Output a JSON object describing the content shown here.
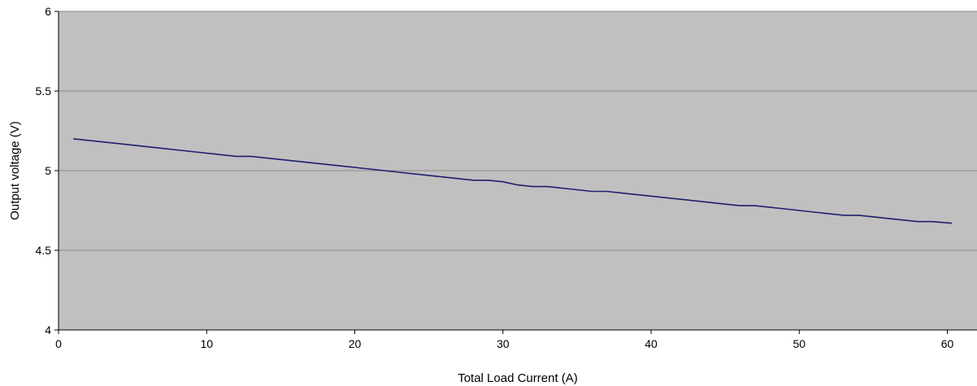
{
  "chart_data": {
    "type": "line",
    "title": "",
    "xlabel": "Total Load Current (A)",
    "ylabel": "Output voltage (V)",
    "xlim": [
      0,
      62
    ],
    "ylim": [
      4,
      6
    ],
    "x_ticks": [
      "0",
      "10",
      "20",
      "30",
      "40",
      "50",
      "60"
    ],
    "y_ticks": [
      "4",
      "4.5",
      "5",
      "5.5",
      "6"
    ],
    "grid": "horizontal",
    "legend": "none",
    "plot_background": "#c0c0c0",
    "series": [
      {
        "color": "#1f1f6e",
        "x": [
          1,
          3,
          5,
          7,
          9,
          11,
          12,
          13,
          15,
          17,
          19,
          21,
          23,
          25,
          27,
          28,
          29,
          30,
          31,
          32,
          33,
          35,
          36,
          37,
          39,
          41,
          43,
          45,
          46,
          47,
          49,
          51,
          53,
          54,
          56,
          58,
          59,
          60.3
        ],
        "y": [
          5.2,
          5.18,
          5.16,
          5.14,
          5.12,
          5.1,
          5.09,
          5.09,
          5.07,
          5.05,
          5.03,
          5.01,
          4.99,
          4.97,
          4.95,
          4.94,
          4.94,
          4.93,
          4.91,
          4.9,
          4.9,
          4.88,
          4.87,
          4.87,
          4.85,
          4.83,
          4.81,
          4.79,
          4.78,
          4.78,
          4.76,
          4.74,
          4.72,
          4.72,
          4.7,
          4.68,
          4.68,
          4.67
        ]
      }
    ]
  }
}
